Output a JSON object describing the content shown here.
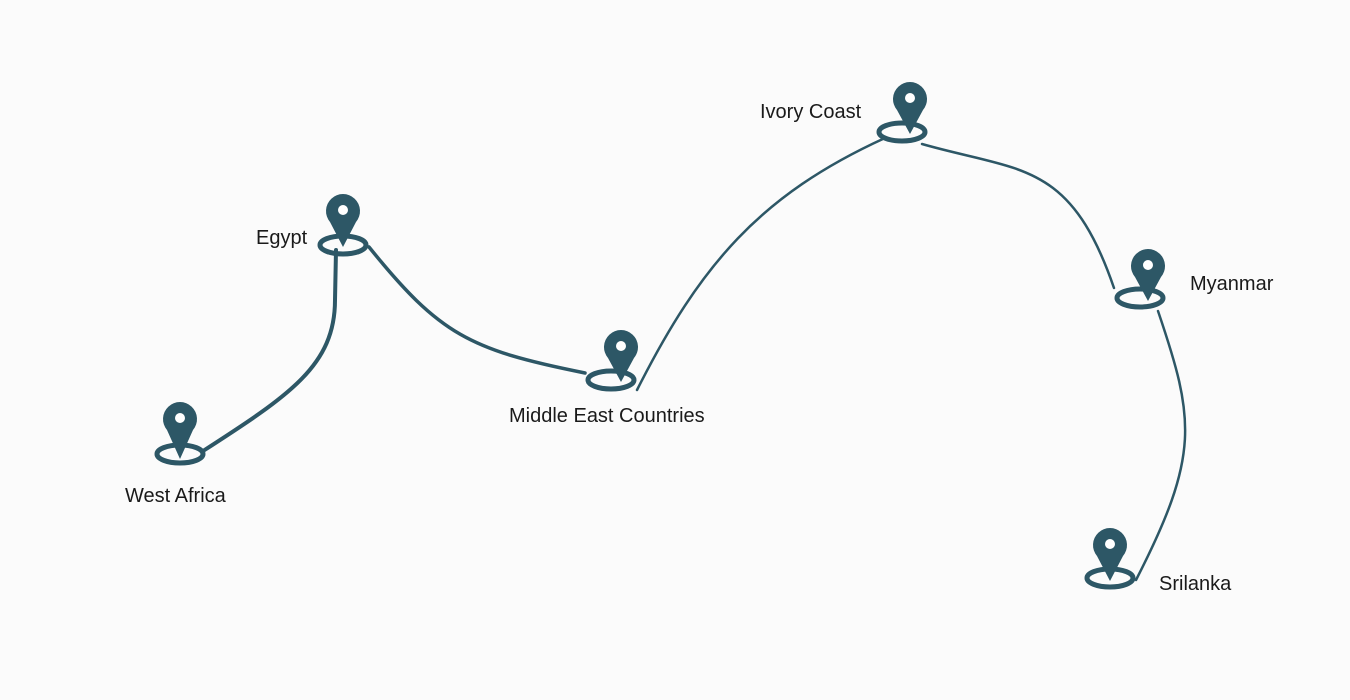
{
  "colors": {
    "background": "#fbfbfb",
    "route": "#2d5766",
    "pin": "#2d5766",
    "pin_hole": "#ffffff",
    "label_text": "#1a1a1a"
  },
  "stops": [
    {
      "label": "West Africa",
      "icon": "map-pin-icon"
    },
    {
      "label": "Egypt",
      "icon": "map-pin-icon"
    },
    {
      "label": "Middle East Countries",
      "icon": "map-pin-icon"
    },
    {
      "label": "Ivory Coast",
      "icon": "map-pin-icon"
    },
    {
      "label": "Myanmar",
      "icon": "map-pin-icon"
    },
    {
      "label": "Srilanka",
      "icon": "map-pin-icon"
    }
  ]
}
